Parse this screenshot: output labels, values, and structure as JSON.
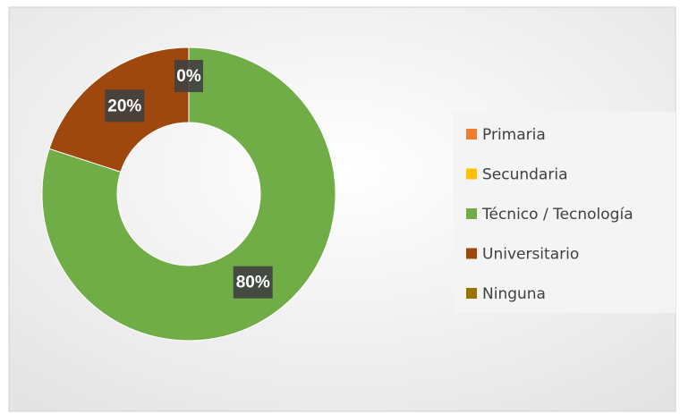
{
  "chart_data": {
    "type": "donut",
    "categories": [
      "Primaria",
      "Secundaria",
      "Técnico / Tecnología",
      "Universitario",
      "Ninguna"
    ],
    "values": [
      0,
      0,
      80,
      20,
      0
    ],
    "value_labels": [
      "0%",
      null,
      "80%",
      "20%",
      null
    ],
    "colors": [
      "#ed7d31",
      "#ffc000",
      "#70ad47",
      "#9e480e",
      "#997300"
    ],
    "legend": "right"
  }
}
